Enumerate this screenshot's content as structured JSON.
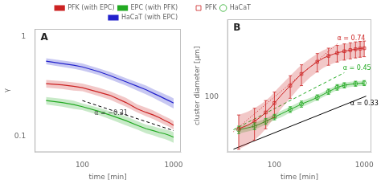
{
  "chart_data": [
    {
      "type": "line",
      "title": "A",
      "xlabel": "time [min]",
      "ylabel": "γ",
      "log": true,
      "xlim": [
        30,
        1200
      ],
      "ylim": [
        0.07,
        1.2
      ],
      "xticks": [
        100,
        1000
      ],
      "yticks": [
        0.1,
        1
      ],
      "grid": false,
      "legend": "upper right",
      "series": [
        {
          "name": "PFK (with EPC)",
          "color": "#cc2222",
          "x": [
            40,
            60,
            80,
            100,
            150,
            200,
            300,
            400,
            500,
            600,
            700,
            800,
            900,
            1000
          ],
          "values": [
            0.34,
            0.33,
            0.32,
            0.31,
            0.28,
            0.26,
            0.22,
            0.19,
            0.175,
            0.165,
            0.155,
            0.145,
            0.138,
            0.13
          ],
          "lower": [
            0.31,
            0.3,
            0.29,
            0.285,
            0.255,
            0.235,
            0.2,
            0.175,
            0.16,
            0.15,
            0.14,
            0.132,
            0.125,
            0.118
          ],
          "upper": [
            0.37,
            0.36,
            0.35,
            0.34,
            0.31,
            0.285,
            0.245,
            0.21,
            0.195,
            0.183,
            0.17,
            0.16,
            0.152,
            0.143
          ]
        },
        {
          "name": "EPC (with PFK)",
          "color": "#22aa22",
          "x": [
            40,
            60,
            80,
            100,
            150,
            200,
            300,
            400,
            500,
            600,
            700,
            800,
            900,
            1000
          ],
          "values": [
            0.23,
            0.22,
            0.21,
            0.2,
            0.18,
            0.165,
            0.145,
            0.13,
            0.12,
            0.115,
            0.11,
            0.107,
            0.103,
            0.099
          ],
          "lower": [
            0.21,
            0.2,
            0.19,
            0.185,
            0.165,
            0.15,
            0.13,
            0.118,
            0.108,
            0.103,
            0.098,
            0.095,
            0.091,
            0.087
          ],
          "upper": [
            0.25,
            0.24,
            0.23,
            0.215,
            0.195,
            0.18,
            0.16,
            0.143,
            0.132,
            0.127,
            0.122,
            0.119,
            0.115,
            0.111
          ]
        },
        {
          "name": "HaCaT (with EPC)",
          "color": "#2222cc",
          "x": [
            40,
            60,
            80,
            100,
            150,
            200,
            300,
            400,
            500,
            600,
            700,
            800,
            900,
            1000
          ],
          "values": [
            0.57,
            0.54,
            0.52,
            0.5,
            0.45,
            0.41,
            0.355,
            0.32,
            0.295,
            0.272,
            0.255,
            0.24,
            0.228,
            0.217
          ],
          "lower": [
            0.53,
            0.5,
            0.48,
            0.46,
            0.415,
            0.375,
            0.325,
            0.29,
            0.265,
            0.245,
            0.228,
            0.214,
            0.202,
            0.192
          ],
          "upper": [
            0.61,
            0.58,
            0.56,
            0.54,
            0.485,
            0.445,
            0.385,
            0.35,
            0.325,
            0.299,
            0.282,
            0.266,
            0.254,
            0.242
          ]
        },
        {
          "color": "black",
          "line_style": "dashed",
          "x": [
            100,
            1000
          ],
          "values": [
            0.23,
            0.115
          ]
        }
      ],
      "annotations": [
        {
          "text": "α = −0.31",
          "x": 135,
          "y": 0.165,
          "color": "#444444"
        }
      ]
    },
    {
      "type": "line",
      "title": "B",
      "xlabel": "time [min]",
      "ylabel": "cluster diameter [µm]",
      "log": true,
      "xlim": [
        30,
        1200
      ],
      "ylim": [
        28,
        600
      ],
      "xticks": [
        100,
        1000
      ],
      "yticks": [
        100
      ],
      "grid": false,
      "legend": "upper left",
      "series": [
        {
          "name": "PFK",
          "color": "#cc2222",
          "marker": "square",
          "x": [
            40,
            50,
            60,
            70,
            80,
            90,
            100,
            120,
            150,
            180,
            200,
            250,
            300,
            350,
            400,
            450,
            500,
            550,
            600,
            650,
            700,
            750,
            800,
            850,
            900,
            950,
            1000
          ],
          "values": [
            48,
            52,
            57,
            63,
            70,
            78,
            87,
            105,
            130,
            155,
            170,
            200,
            225,
            245,
            258,
            268,
            276,
            282,
            287,
            291,
            295,
            298,
            301,
            303,
            305,
            307,
            308
          ],
          "lower": [
            30,
            33,
            37,
            42,
            48,
            55,
            62,
            77,
            97,
            118,
            130,
            157,
            178,
            196,
            208,
            217,
            224,
            230,
            234,
            238,
            241,
            244,
            246,
            248,
            250,
            252,
            253
          ],
          "upper": [
            66,
            71,
            77,
            84,
            92,
            101,
            112,
            133,
            163,
            192,
            210,
            243,
            272,
            294,
            308,
            319,
            328,
            334,
            340,
            344,
            349,
            352,
            356,
            358,
            360,
            362,
            363
          ]
        },
        {
          "name": "HaCaT",
          "color": "#22aa22",
          "marker": "circle",
          "x": [
            40,
            50,
            60,
            70,
            80,
            90,
            100,
            120,
            150,
            180,
            200,
            250,
            300,
            350,
            400,
            450,
            500,
            550,
            600,
            700,
            800,
            900,
            1000
          ],
          "values": [
            47,
            49,
            51,
            54,
            57,
            60,
            63,
            68,
            75,
            81,
            85,
            92,
            99,
            106,
            113,
            119,
            125,
            128,
            131,
            134,
            136,
            137,
            138
          ],
          "lower": [
            43,
            45,
            47,
            50,
            53,
            56,
            59,
            63,
            70,
            75,
            79,
            86,
            93,
            100,
            106,
            112,
            117,
            120,
            123,
            126,
            128,
            129,
            130
          ],
          "upper": [
            51,
            53,
            55,
            58,
            61,
            64,
            67,
            73,
            80,
            87,
            91,
            98,
            105,
            112,
            120,
            126,
            133,
            136,
            139,
            142,
            144,
            145,
            146
          ]
        },
        {
          "color": "black",
          "line_style": "solid",
          "x": [
            35,
            1050
          ],
          "values": [
            30,
            102
          ]
        },
        {
          "color": "#cc2222",
          "line_style": "dotted",
          "x": [
            35,
            500
          ],
          "values": [
            45,
            340
          ]
        },
        {
          "color": "#22aa22",
          "line_style": "dashed",
          "x": [
            35,
            600
          ],
          "values": [
            47,
            175
          ]
        }
      ],
      "annotations": [
        {
          "text": "α = 0.33",
          "x": 700,
          "y": 82,
          "color": "black"
        },
        {
          "text": "α = 0.74",
          "x": 500,
          "y": 370,
          "color": "#cc2222"
        },
        {
          "text": "α = 0.45",
          "x": 580,
          "y": 185,
          "color": "#22aa22"
        }
      ]
    }
  ]
}
